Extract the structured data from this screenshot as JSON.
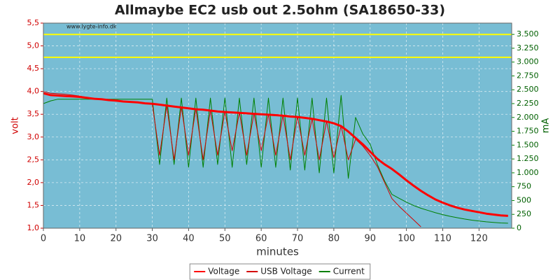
{
  "chart_data": {
    "type": "line",
    "title": "Allmaybe EC2 usb out 2.5ohm (SA18650-33)",
    "watermark": "www.lygte-info.dk",
    "x_label": "minutes",
    "y_label": "volt",
    "y2_label": "mA",
    "background": "#78bdd4",
    "grid": true,
    "xlim": [
      0,
      129
    ],
    "xticks": [
      0,
      10,
      20,
      30,
      40,
      50,
      60,
      70,
      80,
      90,
      100,
      110,
      120
    ],
    "ylim": [
      1.0,
      5.5
    ],
    "yticks": [
      {
        "value": 1.0,
        "label": "1,0"
      },
      {
        "value": 1.5,
        "label": "1,5"
      },
      {
        "value": 2.0,
        "label": "2,0"
      },
      {
        "value": 2.5,
        "label": "2,5"
      },
      {
        "value": 3.0,
        "label": "3,0"
      },
      {
        "value": 3.5,
        "label": "3,5"
      },
      {
        "value": 4.0,
        "label": "4,0"
      },
      {
        "value": 4.5,
        "label": "4,5"
      },
      {
        "value": 5.0,
        "label": "5,0"
      },
      {
        "value": 5.5,
        "label": "5,5"
      }
    ],
    "y2lim": [
      0,
      3704
    ],
    "y2ticks": [
      0,
      250,
      500,
      750,
      {
        "value": 1000,
        "label": "1.000"
      },
      {
        "value": 1250,
        "label": "1.250"
      },
      {
        "value": 1500,
        "label": "1.500"
      },
      {
        "value": 1750,
        "label": "1.750"
      },
      {
        "value": 2000,
        "label": "2.000"
      },
      {
        "value": 2250,
        "label": "2.250"
      },
      {
        "value": 2500,
        "label": "2.500"
      },
      {
        "value": 2750,
        "label": "2.750"
      },
      {
        "value": 3000,
        "label": "3.000"
      },
      {
        "value": 3250,
        "label": "3.250"
      },
      {
        "value": 3500,
        "label": "3.500"
      }
    ],
    "reference_lines": [
      {
        "value": 5.25,
        "color": "#ffff00"
      },
      {
        "value": 4.75,
        "color": "#ffff00"
      }
    ],
    "legend": "bottom",
    "x": [
      0,
      2,
      4,
      6,
      8,
      10,
      12,
      14,
      16,
      18,
      20,
      22,
      24,
      26,
      28,
      30,
      32,
      34,
      36,
      38,
      40,
      42,
      44,
      46,
      48,
      50,
      52,
      54,
      56,
      58,
      60,
      62,
      64,
      66,
      68,
      70,
      72,
      74,
      76,
      78,
      80,
      82,
      84,
      86,
      88,
      90,
      92,
      94,
      96,
      98,
      100,
      102,
      104,
      106,
      108,
      110,
      112,
      114,
      116,
      118,
      120,
      122,
      124,
      126,
      128
    ],
    "series": [
      {
        "name": "Voltage",
        "color": "#ff0000",
        "width": 3,
        "values": [
          3.96,
          3.92,
          3.91,
          3.9,
          3.89,
          3.88,
          3.86,
          3.84,
          3.83,
          3.81,
          3.8,
          3.78,
          3.77,
          3.76,
          3.74,
          3.73,
          3.71,
          3.69,
          3.67,
          3.65,
          3.63,
          3.61,
          3.6,
          3.58,
          3.56,
          3.55,
          3.54,
          3.53,
          3.52,
          3.51,
          3.5,
          3.49,
          3.48,
          3.47,
          3.45,
          3.44,
          3.42,
          3.4,
          3.37,
          3.34,
          3.3,
          3.24,
          3.12,
          2.98,
          2.84,
          2.68,
          2.52,
          2.4,
          2.3,
          2.18,
          2.05,
          1.93,
          1.82,
          1.72,
          1.63,
          1.56,
          1.5,
          1.45,
          1.41,
          1.38,
          1.35,
          1.32,
          1.3,
          1.28,
          1.27
        ]
      },
      {
        "name": "USB Voltage",
        "color": "#d40000",
        "width": 1,
        "values": [
          4.0,
          3.96,
          3.95,
          3.94,
          3.92,
          3.9,
          3.87,
          3.85,
          3.83,
          3.81,
          3.8,
          3.78,
          3.77,
          3.76,
          3.74,
          3.72,
          2.6,
          3.69,
          2.5,
          3.66,
          2.6,
          3.62,
          2.5,
          3.59,
          2.6,
          3.56,
          2.7,
          3.54,
          2.6,
          3.52,
          2.7,
          3.5,
          2.6,
          3.48,
          2.5,
          3.45,
          2.6,
          3.41,
          2.5,
          3.35,
          2.55,
          3.25,
          2.5,
          2.95,
          2.8,
          2.6,
          2.35,
          2.0,
          1.65,
          1.48,
          1.33,
          1.18,
          1.03,
          null,
          null,
          null,
          null,
          null,
          null,
          null,
          null,
          null,
          null,
          null,
          null
        ]
      },
      {
        "name": "Current",
        "color": "#008000",
        "width": 1,
        "axis": "y2",
        "values": [
          2250,
          2300,
          2330,
          2330,
          2330,
          2330,
          2330,
          2330,
          2330,
          2330,
          2330,
          2330,
          2330,
          2330,
          2330,
          2330,
          1150,
          2350,
          1150,
          2350,
          1100,
          2350,
          1100,
          2350,
          1150,
          2350,
          1100,
          2350,
          1150,
          2350,
          1100,
          2350,
          1100,
          2350,
          1050,
          2350,
          1050,
          2350,
          1000,
          2350,
          1000,
          2400,
          900,
          2000,
          1700,
          1520,
          1150,
          850,
          610,
          540,
          470,
          410,
          360,
          320,
          280,
          245,
          215,
          190,
          165,
          145,
          130,
          115,
          105,
          95,
          90
        ]
      }
    ]
  }
}
